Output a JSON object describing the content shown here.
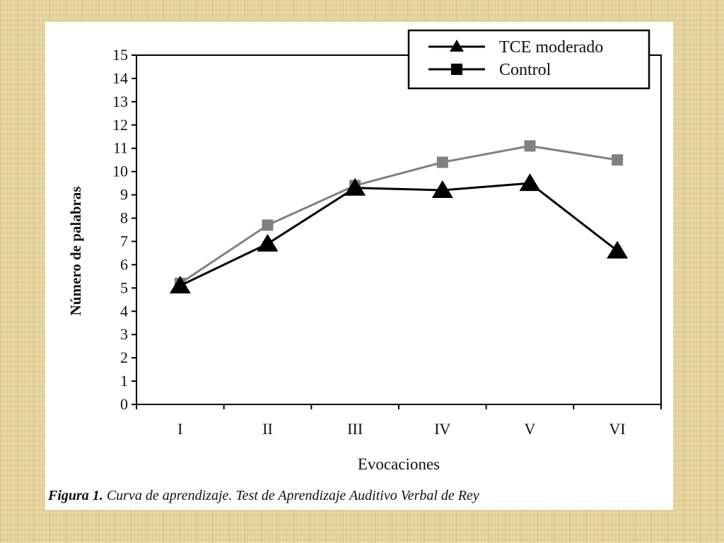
{
  "caption": {
    "prefix": "Figura 1.",
    "text": " Curva de aprendizaje. Test de Aprendizaje Auditivo Verbal de Rey"
  },
  "chart_data": {
    "type": "line",
    "categories": [
      "I",
      "II",
      "III",
      "IV",
      "V",
      "VI"
    ],
    "series": [
      {
        "name": "TCE moderado",
        "values": [
          5.1,
          6.9,
          9.3,
          9.2,
          9.5,
          6.6
        ],
        "color": "#000000",
        "marker": "triangle"
      },
      {
        "name": "Control",
        "values": [
          5.2,
          7.7,
          9.4,
          10.4,
          11.1,
          10.5
        ],
        "color": "#808080",
        "marker": "square"
      }
    ],
    "xlabel": "Evocaciones",
    "ylabel": "Número de palabras",
    "ylim": [
      0,
      15
    ],
    "yticks": [
      "0",
      "1",
      "2",
      "3",
      "4",
      "5",
      "6",
      "7",
      "8",
      "9",
      "10",
      "11",
      "12",
      "13",
      "14",
      "15"
    ],
    "grid": false,
    "legend_position": "top-right"
  }
}
